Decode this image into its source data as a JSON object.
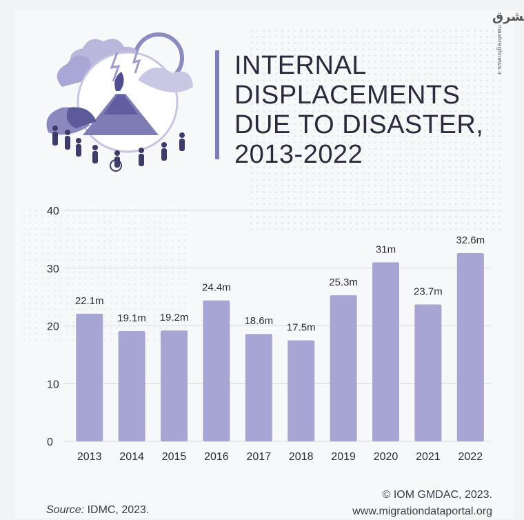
{
  "header": {
    "title_lines": [
      "INTERNAL",
      "DISPLACEMENTS",
      "DUE TO DISASTER,",
      "2013-2022"
    ]
  },
  "watermark": {
    "logo": "مشرق",
    "text": "mashreghnews.ir"
  },
  "footer": {
    "source_label": "Source:",
    "source_text": " IDMC, 2023.",
    "credit": "© IOM GMDAC, 2023.",
    "url": "www.migrationdataportal.org"
  },
  "colors": {
    "bar": "#a7a6d2",
    "grid": "#d6d8dd",
    "accent": "#7f7fb8"
  },
  "chart_data": {
    "type": "bar",
    "categories": [
      "2013",
      "2014",
      "2015",
      "2016",
      "2017",
      "2018",
      "2019",
      "2020",
      "2021",
      "2022"
    ],
    "values": [
      22.1,
      19.1,
      19.2,
      24.4,
      18.6,
      17.5,
      25.3,
      31,
      23.7,
      32.6
    ],
    "data_labels": [
      "22.1m",
      "19.1m",
      "19.2m",
      "24.4m",
      "18.6m",
      "17.5m",
      "25.3m",
      "31m",
      "23.7m",
      "32.6m"
    ],
    "yticks": [
      "0",
      "10",
      "20",
      "30",
      "40"
    ],
    "ylim": [
      0,
      40
    ],
    "grid": true
  }
}
